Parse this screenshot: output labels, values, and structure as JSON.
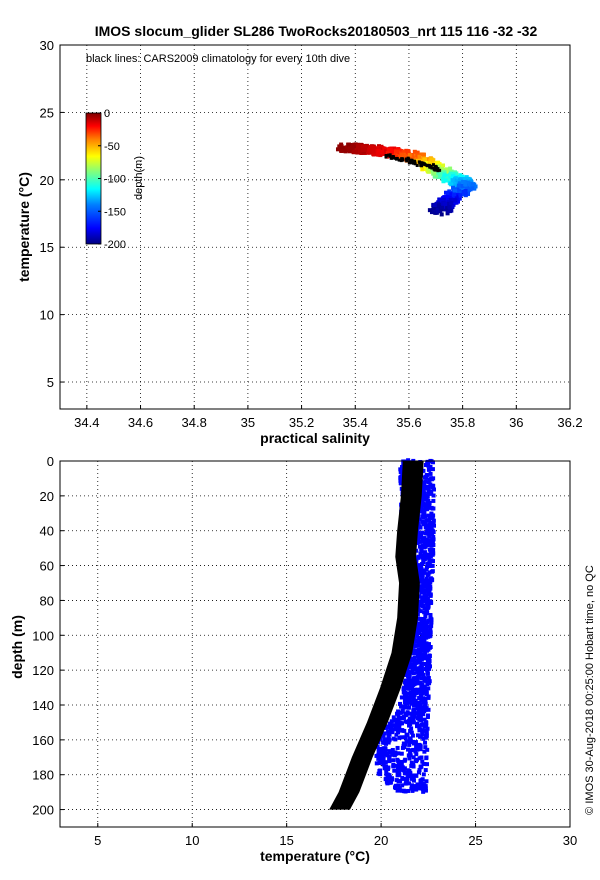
{
  "chart_data": [
    {
      "type": "scatter",
      "title": "IMOS slocum_glider SL286 TwoRocks20180503_nrt 115  116  -32  -32",
      "annotation": "black lines: CARS2009 climatology for every 10th dive",
      "xlabel": "practical salinity",
      "ylabel": "temperature (°C)",
      "xlim": [
        34.3,
        36.2
      ],
      "ylim": [
        3,
        30
      ],
      "xticks": [
        34.4,
        34.6,
        34.8,
        35,
        35.2,
        35.4,
        35.6,
        35.8,
        36,
        36.2
      ],
      "xtick_labels": [
        "34.4",
        "34.6",
        "34.8",
        "35",
        "35.2",
        "35.4",
        "35.6",
        "35.8",
        "36",
        "36.2"
      ],
      "yticks": [
        5,
        10,
        15,
        20,
        25,
        30
      ],
      "ytick_labels": [
        "5",
        "10",
        "15",
        "20",
        "25",
        "30"
      ],
      "grid": true,
      "colorbar": {
        "label": "depth(m)",
        "range": [
          -200,
          0
        ],
        "ticks": [
          0,
          -50,
          -100,
          -150,
          -200
        ],
        "tick_labels": [
          "0",
          "-50",
          "-100",
          "-150",
          "-200"
        ],
        "colormap": [
          "#00007f",
          "#0000ff",
          "#007fff",
          "#00ffff",
          "#7fff7f",
          "#ffff00",
          "#ff7f00",
          "#ff0000",
          "#7f0000"
        ]
      },
      "glider_series": [
        {
          "salinity": 35.36,
          "temperature": 22.4,
          "depth": -2
        },
        {
          "salinity": 35.42,
          "temperature": 22.3,
          "depth": -8
        },
        {
          "salinity": 35.48,
          "temperature": 22.2,
          "depth": -15
        },
        {
          "salinity": 35.54,
          "temperature": 22.0,
          "depth": -25
        },
        {
          "salinity": 35.6,
          "temperature": 21.8,
          "depth": -40
        },
        {
          "salinity": 35.66,
          "temperature": 21.3,
          "depth": -60
        },
        {
          "salinity": 35.7,
          "temperature": 20.8,
          "depth": -85
        },
        {
          "salinity": 35.74,
          "temperature": 20.3,
          "depth": -110
        },
        {
          "salinity": 35.79,
          "temperature": 19.9,
          "depth": -135
        },
        {
          "salinity": 35.82,
          "temperature": 19.6,
          "depth": -150
        },
        {
          "salinity": 35.78,
          "temperature": 19.0,
          "depth": -165
        },
        {
          "salinity": 35.74,
          "temperature": 18.3,
          "depth": -182
        },
        {
          "salinity": 35.71,
          "temperature": 17.7,
          "depth": -198
        }
      ],
      "climatology_series": [
        {
          "salinity": 35.52,
          "temperature": 21.8
        },
        {
          "salinity": 35.56,
          "temperature": 21.6
        },
        {
          "salinity": 35.6,
          "temperature": 21.4
        },
        {
          "salinity": 35.64,
          "temperature": 21.2
        },
        {
          "salinity": 35.68,
          "temperature": 21.0
        },
        {
          "salinity": 35.71,
          "temperature": 20.7
        }
      ]
    },
    {
      "type": "scatter",
      "xlabel": "temperature (°C)",
      "ylabel": "depth (m)",
      "xlim": [
        3,
        30
      ],
      "ylim": [
        210,
        0
      ],
      "xticks": [
        5,
        10,
        15,
        20,
        25,
        30
      ],
      "xtick_labels": [
        "5",
        "10",
        "15",
        "20",
        "25",
        "30"
      ],
      "yticks": [
        0,
        20,
        40,
        60,
        80,
        100,
        120,
        140,
        160,
        180,
        200
      ],
      "ytick_labels": [
        "0",
        "20",
        "40",
        "60",
        "80",
        "100",
        "120",
        "140",
        "160",
        "180",
        "200"
      ],
      "grid": true,
      "series": [
        {
          "name": "glider temperature",
          "color": "#0000ff",
          "left_edge": [
            [
              21.0,
              0
            ],
            [
              21.0,
              30
            ],
            [
              21.2,
              60
            ],
            [
              21.3,
              100
            ],
            [
              21.2,
              130
            ],
            [
              20.8,
              145
            ],
            [
              19.7,
              160
            ],
            [
              19.8,
              180
            ],
            [
              20.8,
              190
            ]
          ],
          "right_edge": [
            [
              22.8,
              0
            ],
            [
              22.8,
              40
            ],
            [
              22.7,
              80
            ],
            [
              22.6,
              120
            ],
            [
              22.5,
              150
            ],
            [
              22.4,
              190
            ]
          ]
        },
        {
          "name": "CARS2009 climatology",
          "color": "#000000",
          "center": [
            [
              21.7,
              0
            ],
            [
              21.6,
              20
            ],
            [
              21.4,
              40
            ],
            [
              21.3,
              55
            ],
            [
              21.5,
              70
            ],
            [
              21.4,
              90
            ],
            [
              21.1,
              110
            ],
            [
              20.5,
              130
            ],
            [
              19.8,
              150
            ],
            [
              19.0,
              170
            ],
            [
              18.3,
              190
            ],
            [
              17.8,
              200
            ]
          ],
          "half_width_degC": 0.55
        }
      ]
    }
  ],
  "side_caption": "©  IMOS 30-Aug-2018 00:25:00 Hobart time, no QC"
}
